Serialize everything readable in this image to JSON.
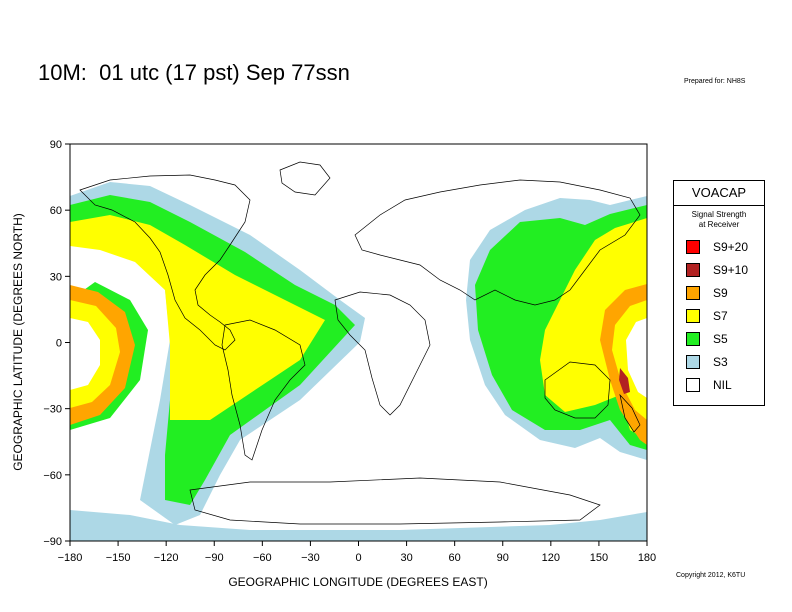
{
  "title": "10M:  01 utc (17 pst) Sep 77ssn",
  "prepared_for": "Prepared for: NH8S",
  "copyright": "Copyright 2012, K6TU",
  "chart_data": {
    "type": "map",
    "xlabel": "GEOGRAPHIC LONGITUDE (DEGREES EAST)",
    "ylabel": "GEOGRAPHIC LATITUDE (DEGREES NORTH)",
    "xlim": [
      -180,
      180
    ],
    "ylim": [
      -90,
      90
    ],
    "xticks": [
      -180,
      -150,
      -120,
      -90,
      -60,
      -30,
      0,
      30,
      60,
      90,
      120,
      150,
      180
    ],
    "yticks": [
      90,
      60,
      30,
      0,
      -30,
      -60,
      -90
    ],
    "xtick_labels": [
      "−180",
      "−150",
      "−120",
      "−90",
      "−60",
      "−30",
      "0",
      "30",
      "60",
      "90",
      "120",
      "150",
      "180"
    ],
    "ytick_labels": [
      "90",
      "60",
      "30",
      "0",
      "−30",
      "−60",
      "−90"
    ]
  },
  "legend": {
    "title": "VOACAP",
    "subtitle_line1": "Signal Strength",
    "subtitle_line2": "at Receiver",
    "items": [
      {
        "label": "S9+20",
        "color": "#ff0000"
      },
      {
        "label": "S9+10",
        "color": "#b22222"
      },
      {
        "label": "S9",
        "color": "#ffa500"
      },
      {
        "label": "S7",
        "color": "#ffff00"
      },
      {
        "label": "S5",
        "color": "#22ee22"
      },
      {
        "label": "S3",
        "color": "#add8e6"
      },
      {
        "label": "NIL",
        "color": "#ffffff"
      }
    ]
  }
}
